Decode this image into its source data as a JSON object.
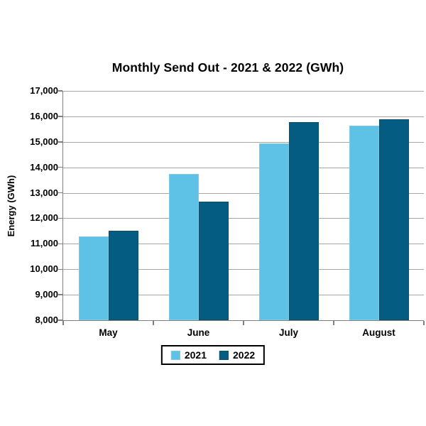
{
  "chart_data": {
    "type": "bar",
    "title": "Monthly Send Out - 2021 & 2022 (GWh)",
    "xlabel": "",
    "ylabel": "Energy (GWh)",
    "categories": [
      "May",
      "June",
      "July",
      "August"
    ],
    "series": [
      {
        "name": "2021",
        "color": "#5EC2E6",
        "border_color": "#7FC9E6",
        "values": [
          11300,
          13750,
          14950,
          15640
        ]
      },
      {
        "name": "2022",
        "color": "#045C82",
        "border_color": "#0E4E6B",
        "values": [
          11500,
          12650,
          15775,
          15900
        ]
      }
    ],
    "ylim": [
      8000,
      17000
    ],
    "ytick_step": 1000,
    "ytick_labels": [
      "17,000",
      "16,000",
      "15,000",
      "14,000",
      "13,000",
      "12,000",
      "11,000",
      "10,000",
      "9,000",
      "8,000"
    ],
    "grid": true,
    "legend_position": "bottom"
  },
  "style_colors": {
    "background": "#FFFFFF",
    "gridline": "#A6A6A6",
    "axis": "#808080",
    "text": "#000000",
    "legend_border": "#000000"
  }
}
